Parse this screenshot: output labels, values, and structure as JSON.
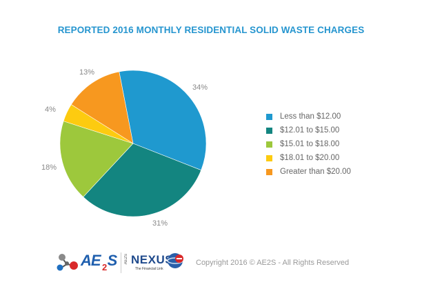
{
  "title": "REPORTED 2016 MONTHLY RESIDENTIAL SOLID WASTE CHARGES",
  "chart_data": {
    "type": "pie",
    "title": "REPORTED 2016 MONTHLY RESIDENTIAL SOLID WASTE CHARGES",
    "categories": [
      "Less than $12.00",
      "$12.01 to $15.00",
      "$15.01 to $18.00",
      "$18.01 to $20.00",
      "Greater than $20.00"
    ],
    "values": [
      34,
      31,
      18,
      4,
      13
    ],
    "labels": [
      "34%",
      "31%",
      "18%",
      "4%",
      "13%"
    ],
    "colors": [
      "#1f99cf",
      "#138580",
      "#9dc83c",
      "#fdcb10",
      "#f7981f"
    ],
    "legend_position": "right",
    "start_angle_deg": -11,
    "direction": "clockwise"
  },
  "legend": {
    "items": [
      {
        "label": "Less than $12.00",
        "color": "#1f99cf"
      },
      {
        "label": "$12.01 to $15.00",
        "color": "#138580"
      },
      {
        "label": "$15.01 to $18.00",
        "color": "#9dc83c"
      },
      {
        "label": "$18.01 to $20.00",
        "color": "#fdcb10"
      },
      {
        "label": "Greater than $20.00",
        "color": "#f7981f"
      }
    ]
  },
  "footer": {
    "logo1": "AE",
    "logo1_sub": "2",
    "logo1_tail": "S",
    "logo2_small": "AE2S",
    "logo2": "NEXUS",
    "logo2_tagline": "The Financial Link",
    "copyright": "Copyright 2016 © AE2S - All Rights Reserved"
  }
}
